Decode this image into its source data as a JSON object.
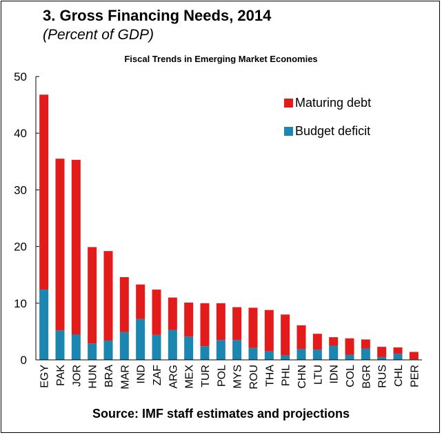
{
  "header": {
    "title": "3.  Gross Financing Needs, 2014",
    "subtitle": "(Percent of GDP)",
    "chart_heading": "Fiscal  Trends in Emerging Market Economies"
  },
  "footer": {
    "source": "Source: IMF staff estimates and projections"
  },
  "colors": {
    "maturing_debt": "#e31b1b",
    "budget_deficit": "#1b86b0",
    "axis": "#000000"
  },
  "chart_data": {
    "type": "bar",
    "stacked": true,
    "title": "3.  Gross Financing Needs, 2014",
    "subtitle": "(Percent of GDP)",
    "xlabel": "",
    "ylabel": "",
    "ylim": [
      0,
      50
    ],
    "yticks": [
      0,
      10,
      20,
      30,
      40,
      50
    ],
    "grid": false,
    "legend_position": "top-right",
    "categories": [
      "EGY",
      "PAK",
      "JOR",
      "HUN",
      "BRA",
      "MAR",
      "IND",
      "ZAF",
      "ARG",
      "MEX",
      "TUR",
      "POL",
      "MYS",
      "ROU",
      "THA",
      "PHL",
      "CHN",
      "LTU",
      "IDN",
      "COL",
      "BGR",
      "RUS",
      "CHL",
      "PER"
    ],
    "series": [
      {
        "name": "Budget deficit",
        "color": "#1b86b0",
        "values": [
          12.4,
          5.2,
          4.5,
          2.9,
          3.4,
          4.9,
          7.2,
          4.4,
          5.3,
          4.1,
          2.4,
          3.5,
          3.5,
          2.1,
          1.5,
          0.8,
          1.9,
          1.8,
          2.5,
          0.9,
          2.0,
          0.5,
          1.1,
          0.1
        ]
      },
      {
        "name": "Maturing debt",
        "color": "#e31b1b",
        "values": [
          34.4,
          30.3,
          30.8,
          17.0,
          15.8,
          9.7,
          6.1,
          8.0,
          5.7,
          6.0,
          7.6,
          6.5,
          5.8,
          7.1,
          7.3,
          7.2,
          4.2,
          2.8,
          1.5,
          2.9,
          1.6,
          1.8,
          1.1,
          1.3
        ]
      }
    ]
  }
}
